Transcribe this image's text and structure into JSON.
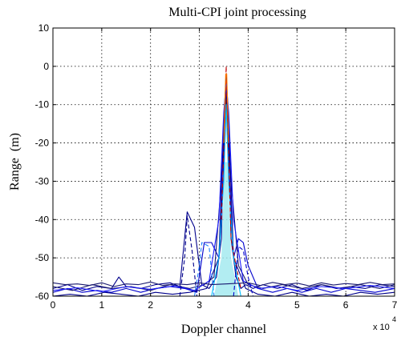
{
  "chart_data": {
    "type": "line",
    "title": "Multi-CPI joint processing",
    "xlabel": "Doppler channel",
    "ylabel": "Range  (m)",
    "x_exponent_label": "x 10",
    "x_exponent_power": "4",
    "xlim": [
      0,
      7
    ],
    "ylim": [
      -60,
      10
    ],
    "x_ticks": [
      "0",
      "1",
      "2",
      "3",
      "4",
      "5",
      "6",
      "7"
    ],
    "y_ticks": [
      "10",
      "0",
      "-10",
      "-20",
      "-30",
      "-40",
      "-50",
      "-60"
    ],
    "grid": true,
    "peak": {
      "x": 3.55,
      "y": 0
    },
    "colors": {
      "dominant": "#0000a0",
      "secondary": [
        "#1a1aff",
        "#2080ff",
        "#00bfff",
        "#c00000",
        "#ff8000"
      ],
      "fill": "#9fe8ef"
    },
    "series": [
      {
        "color": "#00008b",
        "dash": false,
        "x": [
          0,
          0.3,
          0.6,
          0.9,
          1.2,
          1.35,
          1.5,
          1.8,
          2.1,
          2.4,
          2.6,
          2.75,
          2.9,
          3.05,
          3.2,
          3.35,
          3.45,
          3.5,
          3.55,
          3.6,
          3.65,
          3.75,
          3.85,
          3.95,
          4.1,
          4.3,
          4.6,
          4.9,
          5.2,
          5.5,
          5.8,
          6.1,
          6.4,
          6.7,
          7
        ],
        "y": [
          -58,
          -57,
          -58.5,
          -57.5,
          -58,
          -55,
          -57.5,
          -58,
          -57,
          -56.5,
          -57.5,
          -38,
          -42,
          -57,
          -58,
          -55,
          -45,
          -20,
          -3,
          -20,
          -45,
          -55,
          -58,
          -57,
          -58,
          -57,
          -58,
          -57,
          -58.5,
          -57,
          -58,
          -57.5,
          -58,
          -57,
          -57.5
        ]
      },
      {
        "color": "#0000cd",
        "dash": false,
        "x": [
          0,
          0.3,
          0.6,
          0.9,
          1.2,
          1.5,
          1.8,
          2.1,
          2.4,
          2.7,
          2.95,
          3.1,
          3.25,
          3.4,
          3.5,
          3.55,
          3.6,
          3.7,
          3.8,
          3.9,
          4.0,
          4.2,
          4.5,
          4.8,
          5.1,
          5.4,
          5.7,
          6.0,
          6.3,
          6.6,
          7
        ],
        "y": [
          -59,
          -58,
          -59,
          -58.5,
          -59,
          -58,
          -59,
          -58,
          -57.5,
          -58,
          -59,
          -46,
          -46,
          -50,
          -25,
          -5,
          -25,
          -50,
          -45,
          -46,
          -52,
          -58,
          -59,
          -58,
          -59,
          -58,
          -59,
          -58,
          -58.5,
          -59,
          -58
        ]
      },
      {
        "color": "#191970",
        "dash": false,
        "x": [
          0,
          0.4,
          0.8,
          1.2,
          1.6,
          2.0,
          2.4,
          2.8,
          3.1,
          3.3,
          3.45,
          3.55,
          3.65,
          3.8,
          4.0,
          4.3,
          4.7,
          5.1,
          5.5,
          5.9,
          6.3,
          6.7,
          7
        ],
        "y": [
          -57.5,
          -58.5,
          -57,
          -58,
          -57.5,
          -58.5,
          -57,
          -58,
          -57,
          -55,
          -30,
          -8,
          -30,
          -52,
          -57,
          -58,
          -57,
          -58,
          -57,
          -58,
          -57,
          -58,
          -57
        ]
      },
      {
        "color": "#00008b",
        "dash": false,
        "x": [
          0,
          0.35,
          0.7,
          1.05,
          1.4,
          1.75,
          2.1,
          2.45,
          2.8,
          3.15,
          3.4,
          3.5,
          3.55,
          3.6,
          3.7,
          3.95,
          4.2,
          4.55,
          4.9,
          5.25,
          5.6,
          5.95,
          6.3,
          6.65,
          7
        ],
        "y": [
          -60,
          -59.5,
          -60,
          -59,
          -59.5,
          -60,
          -59,
          -59.5,
          -59,
          -58,
          -50,
          -15,
          -2,
          -15,
          -50,
          -58,
          -59.5,
          -60,
          -59,
          -60,
          -59.5,
          -60,
          -59,
          -59.5,
          -59
        ]
      },
      {
        "color": "#1a1aff",
        "dash": false,
        "x": [
          0,
          0.5,
          1.0,
          1.5,
          2.0,
          2.5,
          2.9,
          3.2,
          3.4,
          3.5,
          3.55,
          3.6,
          3.7,
          3.9,
          4.2,
          4.6,
          5.0,
          5.5,
          6.0,
          6.5,
          7
        ],
        "y": [
          -58.5,
          -57.8,
          -58.8,
          -57.5,
          -58.2,
          -57.3,
          -58.5,
          -56,
          -40,
          -12,
          -4,
          -12,
          -40,
          -56,
          -58,
          -57.5,
          -58.5,
          -57.5,
          -58,
          -57.2,
          -58
        ]
      },
      {
        "color": "#00008b",
        "dash": true,
        "x": [
          2.6,
          2.7,
          2.75,
          2.85,
          2.95
        ],
        "y": [
          -60,
          -50,
          -39,
          -48,
          -60
        ]
      },
      {
        "color": "#2080ff",
        "dash": true,
        "x": [
          2.9,
          3.0,
          3.05,
          3.2,
          3.3
        ],
        "y": [
          -60,
          -52,
          -46,
          -47,
          -60
        ]
      },
      {
        "color": "#00bfff",
        "dash": false,
        "x": [
          3.25,
          3.4,
          3.5,
          3.55,
          3.6,
          3.7,
          3.85
        ],
        "y": [
          -60,
          -50,
          -30,
          -10,
          -30,
          -50,
          -60
        ]
      },
      {
        "color": "#c00000",
        "dash": true,
        "x": [
          3.45,
          3.52,
          3.55,
          3.58,
          3.65,
          3.75,
          3.85
        ],
        "y": [
          -40,
          -15,
          0,
          -15,
          -45,
          -52,
          -58
        ]
      },
      {
        "color": "#ff8000",
        "dash": false,
        "x": [
          3.5,
          3.54,
          3.56,
          3.6
        ],
        "y": [
          -20,
          -2,
          -2,
          -20
        ]
      },
      {
        "color": "#0000cd",
        "dash": true,
        "x": [
          3.7,
          3.8,
          3.9,
          4.0,
          4.1
        ],
        "y": [
          -60,
          -47,
          -48,
          -55,
          -60
        ]
      },
      {
        "color": "#191970",
        "dash": false,
        "x": [
          0,
          0.25,
          0.5,
          0.75,
          1.0,
          1.25,
          1.5,
          1.75,
          2.0,
          2.25,
          2.5,
          2.75,
          3.0,
          3.25,
          4.0,
          4.25,
          4.5,
          4.75,
          5.0,
          5.25,
          5.5,
          5.75,
          6.0,
          6.25,
          6.5,
          6.75,
          7
        ],
        "y": [
          -56.5,
          -57,
          -56.8,
          -57.2,
          -56.5,
          -57.5,
          -56.8,
          -57,
          -56.3,
          -57.2,
          -56.8,
          -57,
          -56.5,
          -57,
          -56.5,
          -57.2,
          -56.4,
          -57,
          -56.6,
          -57.3,
          -56.5,
          -57.1,
          -56.7,
          -57,
          -56.4,
          -57,
          -56.8
        ]
      }
    ]
  }
}
